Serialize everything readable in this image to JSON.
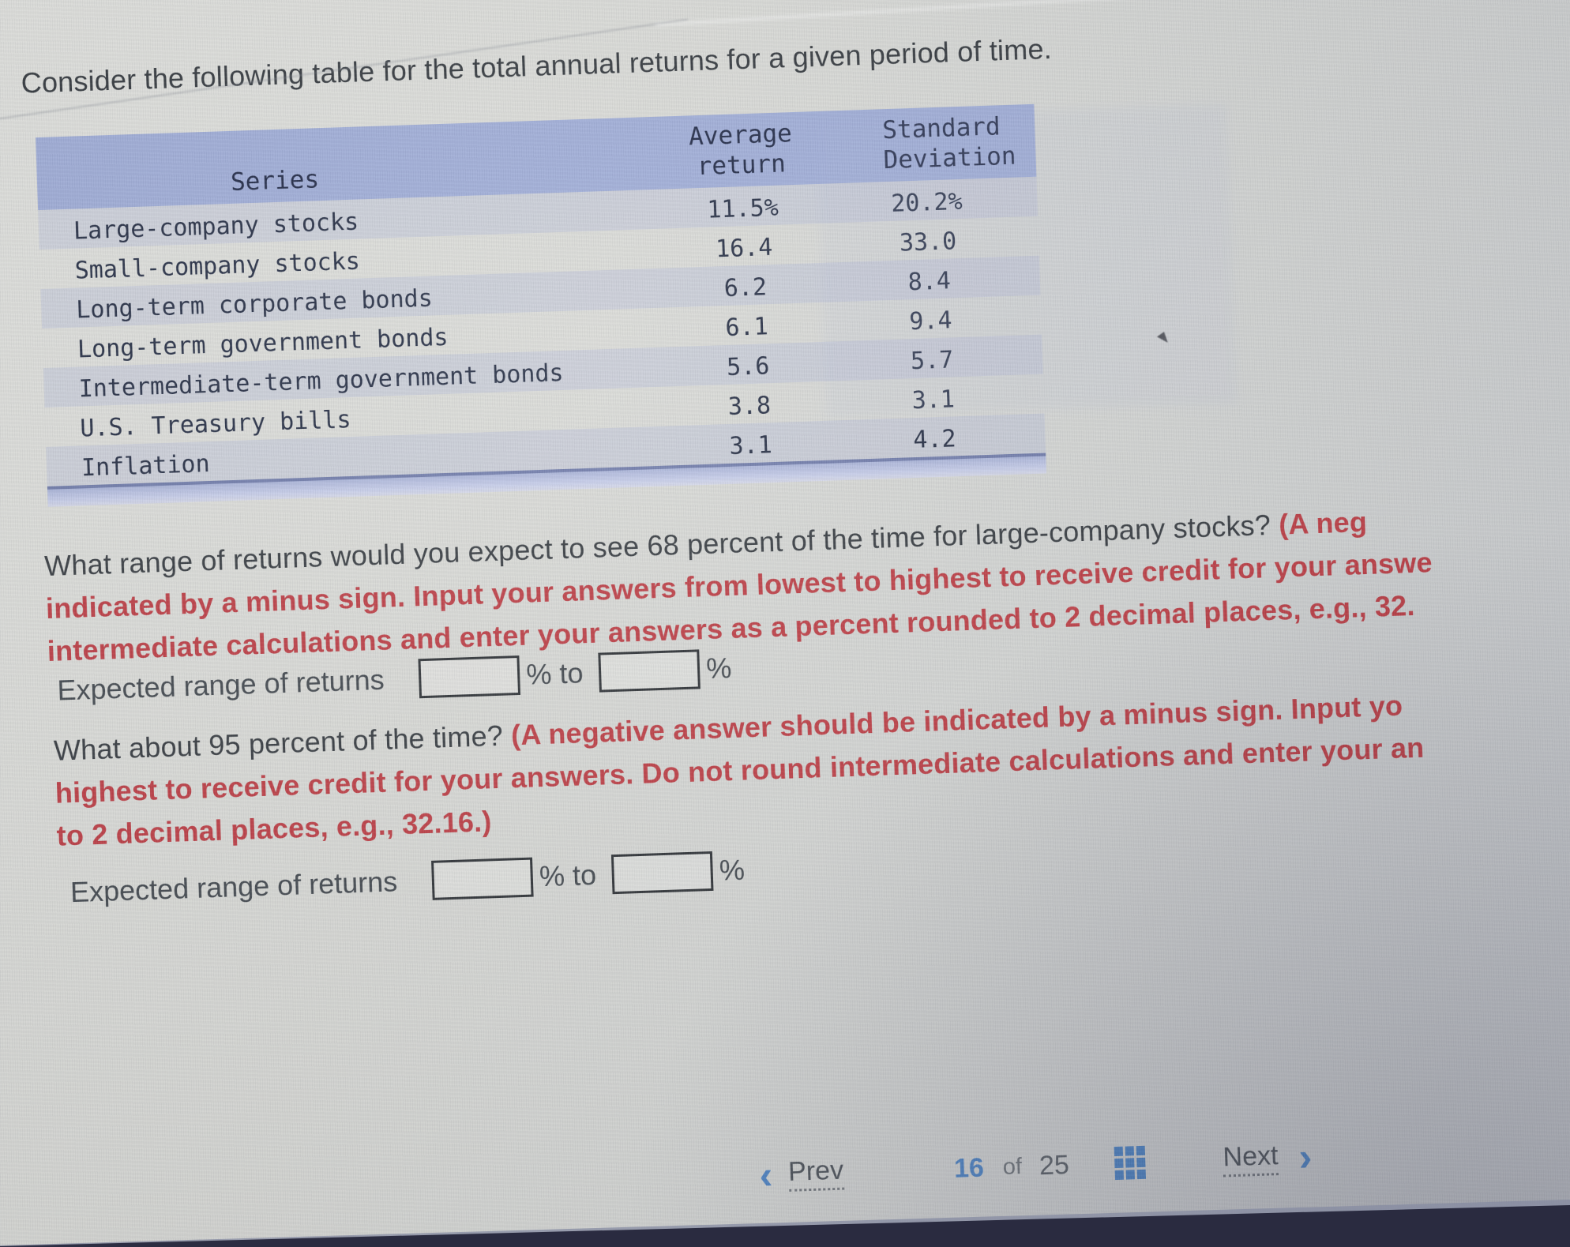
{
  "title": "Consider the following table for the total annual returns for a given period of time.",
  "table": {
    "headers": {
      "series": "Series",
      "average_return": "Average\nreturn",
      "standard_deviation": "Standard\nDeviation"
    },
    "rows": [
      {
        "series": "Large-company stocks",
        "avg": "11.5%",
        "std": "20.2%"
      },
      {
        "series": "Small-company stocks",
        "avg": "16.4",
        "std": "33.0"
      },
      {
        "series": "Long-term corporate bonds",
        "avg": "6.2",
        "std": "8.4"
      },
      {
        "series": "Long-term government bonds",
        "avg": "6.1",
        "std": "9.4"
      },
      {
        "series": "Intermediate-term government bonds",
        "avg": "5.6",
        "std": "5.7"
      },
      {
        "series": "U.S. Treasury bills",
        "avg": "3.8",
        "std": "3.1"
      },
      {
        "series": "Inflation",
        "avg": "3.1",
        "std": "4.2"
      }
    ]
  },
  "question1": {
    "lead_black": "What range of returns would you expect to see 68 percent of the time for large-company stocks? ",
    "lead_red": "(A neg",
    "line2": "indicated by a minus sign. Input your answers from lowest to highest to receive credit for your answe",
    "line3": "intermediate calculations and enter your answers as a percent rounded to 2 decimal places, e.g., 32."
  },
  "question2": {
    "lead_black": "What about 95 percent of the time? ",
    "lead_red": "(A negative answer should be indicated by a minus sign. Input yo",
    "line2": "highest to receive credit for your answers. Do not round intermediate calculations and enter your an",
    "line3": "to 2 decimal places, e.g., 32.16.)"
  },
  "answer_row": {
    "label": "Expected range of returns",
    "percent_to": "% to",
    "percent": "%",
    "input_low_value": "",
    "input_high_value": ""
  },
  "nav": {
    "prev_icon": "‹",
    "prev": "Prev",
    "page": "16",
    "of": "of",
    "total": "25",
    "next": "Next",
    "next_icon": "›"
  },
  "colors": {
    "accent_blue": "#4d84c4",
    "table_header_band": "#9dabd6",
    "table_text_navy": "#1a2340",
    "warning_red": "#bc3a41",
    "body_text": "#33383d",
    "screen_edge_dark": "#2a2b40"
  }
}
